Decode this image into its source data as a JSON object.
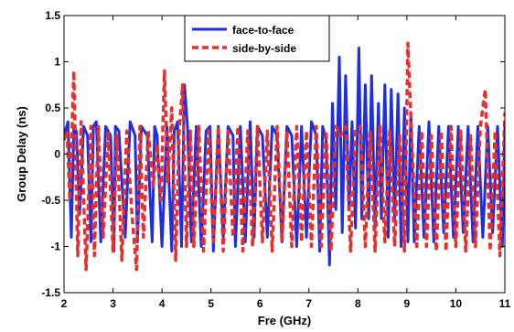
{
  "chart_data": {
    "type": "line",
    "title": "",
    "xlabel": "Fre (GHz)",
    "ylabel": "Group Delay (ns)",
    "xlim": [
      2,
      11
    ],
    "ylim": [
      -1.5,
      1.5
    ],
    "xticks": [
      2,
      3,
      4,
      5,
      6,
      7,
      8,
      9,
      10,
      11
    ],
    "xtick_labels": [
      "2",
      "3",
      "4",
      "5",
      "6",
      "7",
      "8",
      "9",
      "10",
      "11"
    ],
    "yticks": [
      -1.5,
      -1,
      -0.5,
      0,
      0.5,
      1,
      1.5
    ],
    "ytick_labels": [
      "-1.5",
      "-1",
      "-0.5",
      "0",
      "0.5",
      "1",
      "1.5"
    ],
    "grid": false,
    "legend_position": "top-center",
    "series": [
      {
        "name": "face-to-face",
        "color": "#1f2fe0",
        "style": "solid",
        "x": [
          2.0,
          2.08,
          2.15,
          2.2,
          2.25,
          2.32,
          2.4,
          2.48,
          2.55,
          2.6,
          2.66,
          2.75,
          2.85,
          2.95,
          3.02,
          3.05,
          3.12,
          3.25,
          3.35,
          3.45,
          3.5,
          3.58,
          3.7,
          3.8,
          3.85,
          3.9,
          4.0,
          4.1,
          4.2,
          4.25,
          4.32,
          4.4,
          4.46,
          4.52,
          4.6,
          4.7,
          4.8,
          4.9,
          4.98,
          5.05,
          5.15,
          5.25,
          5.35,
          5.45,
          5.5,
          5.6,
          5.7,
          5.8,
          5.88,
          5.95,
          6.05,
          6.15,
          6.25,
          6.35,
          6.45,
          6.55,
          6.65,
          6.75,
          6.85,
          6.95,
          7.05,
          7.15,
          7.22,
          7.28,
          7.35,
          7.42,
          7.48,
          7.55,
          7.62,
          7.68,
          7.75,
          7.82,
          7.88,
          7.95,
          8.02,
          8.08,
          8.15,
          8.22,
          8.28,
          8.35,
          8.42,
          8.48,
          8.55,
          8.62,
          8.68,
          8.75,
          8.82,
          8.88,
          8.95,
          9.02,
          9.08,
          9.15,
          9.25,
          9.35,
          9.45,
          9.55,
          9.65,
          9.75,
          9.85,
          9.95,
          10.05,
          10.15,
          10.25,
          10.35,
          10.45,
          10.55,
          10.65,
          10.75,
          10.85,
          10.95,
          11.0
        ],
        "y": [
          0.2,
          0.35,
          -0.9,
          0.3,
          0.25,
          -0.65,
          0.3,
          0.2,
          -0.95,
          0.3,
          0.35,
          -0.95,
          0.3,
          0.2,
          -1.05,
          0.3,
          0.25,
          -0.9,
          0.35,
          0.2,
          -0.95,
          0.3,
          0.2,
          -0.95,
          0.3,
          0.2,
          -1.0,
          0.3,
          -1.05,
          0.25,
          0.35,
          -1.0,
          0.75,
          0.3,
          -0.95,
          0.3,
          -1.0,
          0.25,
          0.3,
          -1.05,
          0.3,
          -0.9,
          0.3,
          0.2,
          -1.0,
          0.3,
          -0.95,
          0.35,
          -0.9,
          0.3,
          0.2,
          -0.9,
          0.3,
          0.2,
          -0.95,
          0.3,
          0.2,
          -1.0,
          0.3,
          -0.9,
          0.35,
          0.2,
          -1.05,
          0.3,
          0.15,
          -1.2,
          0.55,
          -0.6,
          1.05,
          -0.85,
          0.85,
          -0.6,
          0.35,
          -0.8,
          1.15,
          -0.7,
          0.75,
          -0.7,
          0.85,
          -0.8,
          0.55,
          -0.7,
          0.75,
          -0.9,
          0.7,
          -0.7,
          0.65,
          -1.0,
          0.5,
          -0.95,
          0.45,
          -0.95,
          0.3,
          -0.9,
          0.35,
          -0.95,
          0.3,
          -0.85,
          0.3,
          -0.9,
          0.3,
          -0.85,
          0.3,
          -0.95,
          0.3,
          -0.9,
          0.3,
          -0.85,
          0.3,
          -1.0,
          0.3
        ]
      },
      {
        "name": "side-by-side",
        "color": "#e53030",
        "style": "dashed",
        "x": [
          2.0,
          2.06,
          2.12,
          2.2,
          2.28,
          2.35,
          2.45,
          2.55,
          2.62,
          2.7,
          2.8,
          2.9,
          3.0,
          3.08,
          3.18,
          3.28,
          3.38,
          3.48,
          3.55,
          3.62,
          3.72,
          3.82,
          3.9,
          3.98,
          4.05,
          4.12,
          4.2,
          4.28,
          4.35,
          4.42,
          4.5,
          4.58,
          4.65,
          4.75,
          4.85,
          4.95,
          5.05,
          5.15,
          5.25,
          5.35,
          5.45,
          5.55,
          5.65,
          5.75,
          5.85,
          5.95,
          6.05,
          6.15,
          6.25,
          6.35,
          6.45,
          6.55,
          6.65,
          6.75,
          6.85,
          6.95,
          7.05,
          7.15,
          7.25,
          7.35,
          7.45,
          7.55,
          7.65,
          7.75,
          7.85,
          7.95,
          8.05,
          8.15,
          8.25,
          8.35,
          8.45,
          8.55,
          8.65,
          8.75,
          8.85,
          8.95,
          9.02,
          9.1,
          9.2,
          9.3,
          9.4,
          9.5,
          9.6,
          9.7,
          9.8,
          9.9,
          10.0,
          10.1,
          10.2,
          10.3,
          10.4,
          10.5,
          10.6,
          10.7,
          10.8,
          10.9,
          11.0
        ],
        "y": [
          0.15,
          0.25,
          -0.5,
          0.9,
          -1.1,
          0.35,
          -1.25,
          0.3,
          -1.1,
          0.3,
          -0.9,
          0.25,
          -1.05,
          0.2,
          -1.15,
          0.25,
          -0.6,
          -1.25,
          0.3,
          -0.9,
          0.25,
          -0.35,
          0.1,
          -0.5,
          0.9,
          -0.3,
          0.5,
          -1.15,
          0.25,
          0.75,
          -1.0,
          0.25,
          -1.0,
          0.3,
          -1.05,
          0.25,
          -0.95,
          0.3,
          -1.05,
          0.25,
          -0.9,
          0.3,
          -1.05,
          0.25,
          -1.0,
          0.3,
          -0.95,
          0.25,
          -1.05,
          0.3,
          -0.95,
          0.25,
          -1.0,
          0.3,
          -0.95,
          0.25,
          -1.0,
          0.3,
          -1.0,
          0.25,
          -1.05,
          0.3,
          0.2,
          0.3,
          -1.05,
          0.25,
          0.3,
          -1.0,
          0.25,
          -1.05,
          0.3,
          -0.95,
          0.25,
          -1.0,
          0.2,
          -1.05,
          1.2,
          0.15,
          -1.0,
          0.25,
          -1.0,
          0.2,
          -1.05,
          0.25,
          -1.05,
          0.3,
          -1.0,
          0.25,
          -1.05,
          0.2,
          -1.0,
          0.3,
          0.7,
          -1.05,
          0.25,
          -1.1,
          0.45
        ]
      }
    ]
  }
}
